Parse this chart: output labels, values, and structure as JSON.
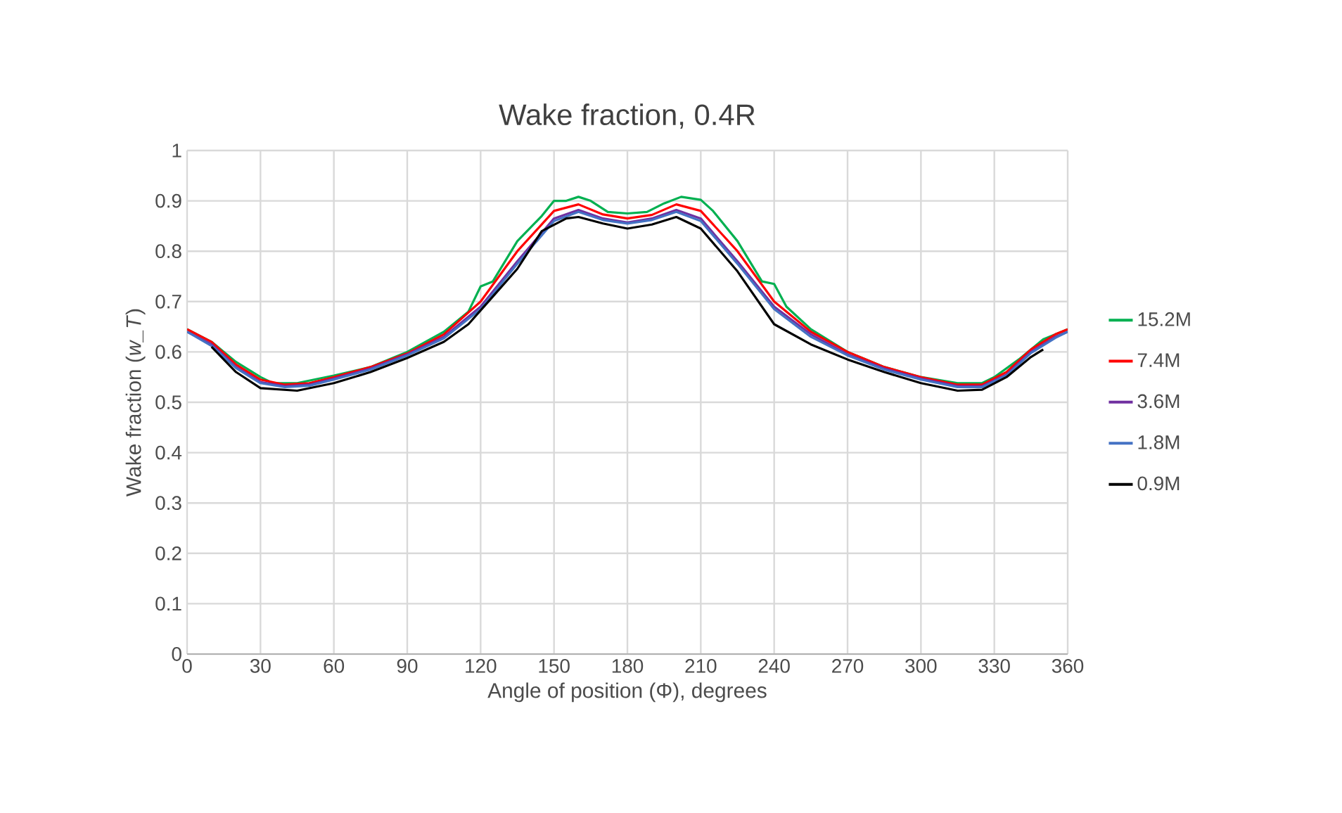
{
  "chart_data": {
    "type": "line",
    "title": "Wake fraction, 0.4R",
    "xlabel": "Angle of position (Φ), degrees",
    "ylabel": "Wake fraction (*w_T*)",
    "xlim": [
      0,
      360
    ],
    "xticks": [
      0,
      30,
      60,
      90,
      120,
      150,
      180,
      210,
      240,
      270,
      300,
      330,
      360
    ],
    "ylim": [
      0,
      1
    ],
    "yticks": [
      0,
      0.1,
      0.2,
      0.3,
      0.4,
      0.5,
      0.6,
      0.7,
      0.8,
      0.9,
      1
    ],
    "grid": true,
    "legend": "right",
    "marker": "none",
    "line_style": "solid",
    "series": [
      {
        "name": "15.2M",
        "color": "#00b050",
        "x": [
          0,
          10,
          20,
          30,
          35,
          45,
          60,
          75,
          90,
          105,
          115,
          120,
          125,
          135,
          145,
          150,
          155,
          160,
          165,
          172,
          180,
          188,
          195,
          202,
          210,
          215,
          225,
          235,
          240,
          245,
          255,
          270,
          285,
          300,
          315,
          325,
          330,
          340,
          350,
          360
        ],
        "values": [
          0.645,
          0.62,
          0.58,
          0.55,
          0.538,
          0.538,
          0.553,
          0.57,
          0.6,
          0.64,
          0.68,
          0.73,
          0.74,
          0.82,
          0.87,
          0.9,
          0.9,
          0.908,
          0.9,
          0.878,
          0.875,
          0.878,
          0.895,
          0.908,
          0.902,
          0.88,
          0.82,
          0.74,
          0.735,
          0.69,
          0.645,
          0.6,
          0.57,
          0.55,
          0.538,
          0.538,
          0.55,
          0.585,
          0.625,
          0.645
        ]
      },
      {
        "name": "7.4M",
        "color": "#ff0000",
        "x": [
          0,
          10,
          20,
          30,
          40,
          50,
          60,
          75,
          90,
          105,
          120,
          135,
          150,
          160,
          170,
          180,
          190,
          200,
          210,
          225,
          240,
          255,
          270,
          285,
          300,
          315,
          325,
          335,
          345,
          355,
          360
        ],
        "values": [
          0.645,
          0.62,
          0.575,
          0.545,
          0.535,
          0.538,
          0.55,
          0.57,
          0.597,
          0.635,
          0.7,
          0.8,
          0.88,
          0.893,
          0.873,
          0.865,
          0.872,
          0.893,
          0.88,
          0.8,
          0.7,
          0.64,
          0.6,
          0.57,
          0.55,
          0.535,
          0.535,
          0.56,
          0.605,
          0.635,
          0.645
        ]
      },
      {
        "name": "3.6M",
        "color": "#7030a0",
        "x": [
          0,
          10,
          20,
          30,
          40,
          50,
          60,
          75,
          90,
          105,
          120,
          135,
          150,
          160,
          170,
          180,
          190,
          200,
          210,
          225,
          240,
          255,
          270,
          285,
          300,
          315,
          325,
          335,
          345,
          355,
          360
        ],
        "values": [
          0.64,
          0.615,
          0.57,
          0.54,
          0.532,
          0.535,
          0.547,
          0.567,
          0.595,
          0.63,
          0.69,
          0.78,
          0.865,
          0.882,
          0.865,
          0.857,
          0.865,
          0.882,
          0.865,
          0.78,
          0.69,
          0.635,
          0.595,
          0.567,
          0.547,
          0.532,
          0.532,
          0.555,
          0.6,
          0.63,
          0.64
        ]
      },
      {
        "name": "1.8M",
        "color": "#4472c4",
        "x": [
          0,
          10,
          20,
          30,
          40,
          50,
          60,
          75,
          90,
          105,
          120,
          135,
          150,
          160,
          170,
          180,
          190,
          200,
          210,
          225,
          240,
          255,
          270,
          285,
          300,
          315,
          325,
          335,
          345,
          355,
          360
        ],
        "values": [
          0.64,
          0.612,
          0.568,
          0.538,
          0.53,
          0.533,
          0.545,
          0.565,
          0.593,
          0.627,
          0.685,
          0.775,
          0.86,
          0.878,
          0.862,
          0.855,
          0.862,
          0.878,
          0.86,
          0.775,
          0.685,
          0.63,
          0.593,
          0.565,
          0.545,
          0.53,
          0.53,
          0.553,
          0.598,
          0.628,
          0.64
        ]
      },
      {
        "name": "0.9M",
        "color": "#000000",
        "x": [
          10,
          20,
          30,
          45,
          60,
          75,
          90,
          105,
          115,
          125,
          135,
          145,
          155,
          160,
          170,
          180,
          190,
          200,
          210,
          225,
          240,
          255,
          270,
          285,
          300,
          315,
          325,
          335,
          345,
          350
        ],
        "values": [
          0.61,
          0.56,
          0.528,
          0.523,
          0.538,
          0.56,
          0.588,
          0.62,
          0.655,
          0.71,
          0.765,
          0.84,
          0.865,
          0.868,
          0.855,
          0.845,
          0.853,
          0.868,
          0.845,
          0.76,
          0.655,
          0.615,
          0.585,
          0.56,
          0.538,
          0.523,
          0.525,
          0.55,
          0.59,
          0.605
        ]
      }
    ]
  }
}
